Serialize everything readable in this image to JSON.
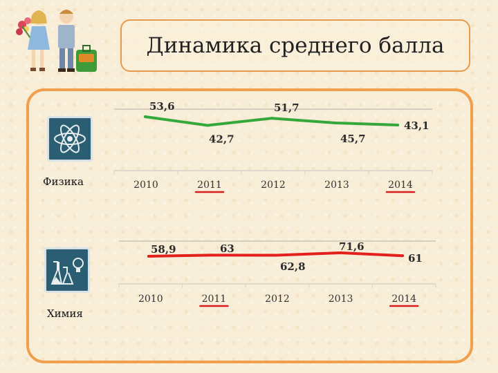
{
  "title": "Динамика среднего балла",
  "subjects": [
    {
      "label": "Физика",
      "icon": "atom-icon"
    },
    {
      "label": "Химия",
      "icon": "chemistry-flask-bulb-icon"
    }
  ],
  "colors": {
    "physics_line": "#35a83c",
    "chemistry_line": "#e3201b",
    "underline": "#d91c1c",
    "panel_border": "#f0a04c",
    "icon_bg": "#2b5e73"
  },
  "chart_data": [
    {
      "type": "line",
      "categories": [
        "2010",
        "2011",
        "2012",
        "2013",
        "2014"
      ],
      "values": [
        53.6,
        42.7,
        51.7,
        45.7,
        43.1
      ],
      "value_labels": [
        "53,6",
        "42,7",
        "51,7",
        "45,7",
        "43,1"
      ],
      "underlined_categories": [
        "2011",
        "2014"
      ],
      "title": "",
      "xlabel": "",
      "ylabel": "",
      "grid": false,
      "legend": "none"
    },
    {
      "type": "line",
      "categories": [
        "2010",
        "2011",
        "2012",
        "2013",
        "2014"
      ],
      "values": [
        58.9,
        63,
        62.8,
        71.6,
        61
      ],
      "value_labels": [
        "58,9",
        "63",
        "62,8",
        "71,6",
        "61"
      ],
      "underlined_categories": [
        "2011",
        "2014"
      ],
      "title": "",
      "xlabel": "",
      "ylabel": "",
      "grid": false,
      "legend": "none"
    }
  ]
}
